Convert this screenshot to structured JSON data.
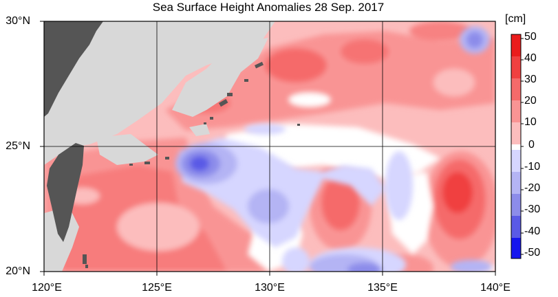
{
  "title": "Sea Surface Height Anomalies  28 Sep. 2017",
  "colorbar": {
    "unit": "[cm]",
    "ticks": [
      "50",
      "40",
      "30",
      "20",
      "10",
      "0",
      "-10",
      "-20",
      "-30",
      "-40",
      "-50"
    ],
    "colors": [
      "#ea1c1c",
      "#f04040",
      "#f56a6a",
      "#f99494",
      "#fcbdbd",
      "#ffffff",
      "#d6d6ff",
      "#b4b4f4",
      "#8c8cea",
      "#5a5ae6",
      "#1515ee"
    ]
  },
  "axes": {
    "lat_labels": [
      "30°N",
      "25°N",
      "20°N"
    ],
    "lon_labels": [
      "120°E",
      "125°E",
      "130°E",
      "135°E",
      "140°E"
    ]
  },
  "colors": {
    "land": "#d8d8d8",
    "taiwan": "#555555",
    "no_data": "#d8d8d8"
  }
}
